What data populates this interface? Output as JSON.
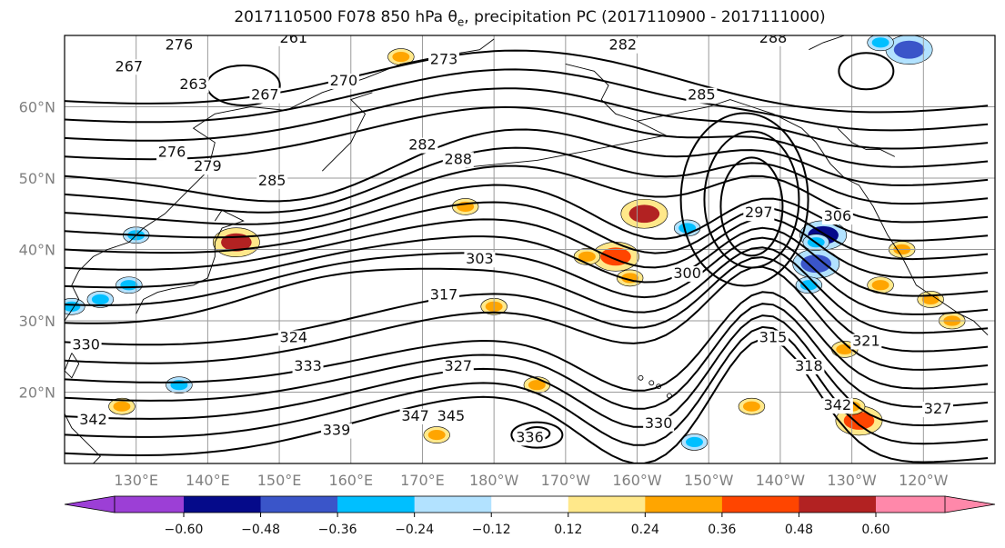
{
  "title": {
    "text": "2017110500 F078 850 hPa θ",
    "sub": "e",
    "suffix": ", precipitation PC (2017110900 - 2017111000)"
  },
  "map": {
    "lat_range": [
      10,
      70
    ],
    "lon_range": [
      120,
      250
    ],
    "lat_ticks": [
      {
        "lat": 60,
        "label": "60°N"
      },
      {
        "lat": 50,
        "label": "50°N"
      },
      {
        "lat": 40,
        "label": "40°N"
      },
      {
        "lat": 30,
        "label": "30°N"
      },
      {
        "lat": 20,
        "label": "20°N"
      }
    ],
    "lon_ticks": [
      {
        "lon": 130,
        "label": "130°E"
      },
      {
        "lon": 140,
        "label": "140°E"
      },
      {
        "lon": 150,
        "label": "150°E"
      },
      {
        "lon": 160,
        "label": "160°E"
      },
      {
        "lon": 170,
        "label": "170°E"
      },
      {
        "lon": 180,
        "label": "180°W"
      },
      {
        "lon": 190,
        "label": "170°W"
      },
      {
        "lon": 200,
        "label": "160°W"
      },
      {
        "lon": 210,
        "label": "150°W"
      },
      {
        "lon": 220,
        "label": "140°W"
      },
      {
        "lon": 230,
        "label": "130°W"
      },
      {
        "lon": 240,
        "label": "120°W"
      }
    ],
    "grid": true,
    "contour_labels": [
      {
        "text": "276",
        "lon": 136,
        "lat": 68
      },
      {
        "text": "261",
        "lon": 152,
        "lat": 69
      },
      {
        "text": "267",
        "lon": 129,
        "lat": 65
      },
      {
        "text": "263",
        "lon": 138,
        "lat": 62.5
      },
      {
        "text": "267",
        "lon": 148,
        "lat": 61
      },
      {
        "text": "270",
        "lon": 159,
        "lat": 63
      },
      {
        "text": "273",
        "lon": 173,
        "lat": 66
      },
      {
        "text": "282",
        "lon": 198,
        "lat": 68
      },
      {
        "text": "288",
        "lon": 219,
        "lat": 69
      },
      {
        "text": "285",
        "lon": 209,
        "lat": 61
      },
      {
        "text": "276",
        "lon": 135,
        "lat": 53
      },
      {
        "text": "279",
        "lon": 140,
        "lat": 51
      },
      {
        "text": "285",
        "lon": 149,
        "lat": 49
      },
      {
        "text": "282",
        "lon": 170,
        "lat": 54
      },
      {
        "text": "288",
        "lon": 175,
        "lat": 52
      },
      {
        "text": "297",
        "lon": 217,
        "lat": 44.5
      },
      {
        "text": "306",
        "lon": 228,
        "lat": 44
      },
      {
        "text": "303",
        "lon": 178,
        "lat": 38
      },
      {
        "text": "300",
        "lon": 207,
        "lat": 36
      },
      {
        "text": "317",
        "lon": 173,
        "lat": 33
      },
      {
        "text": "324",
        "lon": 152,
        "lat": 27
      },
      {
        "text": "333",
        "lon": 154,
        "lat": 23
      },
      {
        "text": "327",
        "lon": 175,
        "lat": 23
      },
      {
        "text": "315",
        "lon": 219,
        "lat": 27
      },
      {
        "text": "318",
        "lon": 224,
        "lat": 23
      },
      {
        "text": "321",
        "lon": 232,
        "lat": 26.5
      },
      {
        "text": "330",
        "lon": 123,
        "lat": 26
      },
      {
        "text": "342",
        "lon": 124,
        "lat": 15.5
      },
      {
        "text": "347",
        "lon": 169,
        "lat": 16
      },
      {
        "text": "339",
        "lon": 158,
        "lat": 14
      },
      {
        "text": "345",
        "lon": 174,
        "lat": 16
      },
      {
        "text": "336",
        "lon": 185,
        "lat": 13
      },
      {
        "text": "330",
        "lon": 203,
        "lat": 15
      },
      {
        "text": "342",
        "lon": 228,
        "lat": 17.5
      },
      {
        "text": "327",
        "lon": 242,
        "lat": 17
      }
    ]
  },
  "colorbar": {
    "colors": [
      "#9c3fd6",
      "#050a8a",
      "#3a55c9",
      "#00bfff",
      "#b2e2ff",
      "#ffffff",
      "#ffe88a",
      "#ffa500",
      "#ff4500",
      "#b22222",
      "#ff88aa"
    ],
    "extend": "both",
    "ticks": [
      "−0.60",
      "−0.48",
      "−0.36",
      "−0.24",
      "−0.12",
      "0.12",
      "0.24",
      "0.36",
      "0.48",
      "0.60"
    ]
  },
  "precip_blobs": [
    {
      "lon": 225,
      "lat": 38,
      "value": -0.4
    },
    {
      "lon": 226,
      "lat": 42,
      "value": -0.5
    },
    {
      "lon": 225,
      "lat": 41,
      "value": -0.3
    },
    {
      "lon": 224,
      "lat": 35,
      "value": -0.3
    },
    {
      "lon": 197,
      "lat": 39,
      "value": 0.4
    },
    {
      "lon": 193,
      "lat": 39,
      "value": 0.3
    },
    {
      "lon": 199,
      "lat": 36,
      "value": 0.3
    },
    {
      "lon": 201,
      "lat": 45,
      "value": 0.5
    },
    {
      "lon": 176,
      "lat": 46,
      "value": 0.3
    },
    {
      "lon": 144,
      "lat": 41,
      "value": 0.5
    },
    {
      "lon": 238,
      "lat": 68,
      "value": -0.4
    },
    {
      "lon": 234,
      "lat": 69,
      "value": -0.3
    },
    {
      "lon": 231,
      "lat": 16,
      "value": 0.4
    },
    {
      "lon": 230,
      "lat": 18,
      "value": 0.3
    },
    {
      "lon": 172,
      "lat": 14,
      "value": 0.3
    },
    {
      "lon": 125,
      "lat": 33,
      "value": -0.3
    },
    {
      "lon": 129,
      "lat": 35,
      "value": -0.3
    },
    {
      "lon": 207,
      "lat": 43,
      "value": -0.3
    },
    {
      "lon": 229,
      "lat": 26,
      "value": 0.3
    },
    {
      "lon": 186,
      "lat": 21,
      "value": 0.3
    },
    {
      "lon": 167,
      "lat": 67,
      "value": 0.3
    },
    {
      "lon": 234,
      "lat": 35,
      "value": 0.3
    },
    {
      "lon": 237,
      "lat": 40,
      "value": 0.3
    },
    {
      "lon": 180,
      "lat": 32,
      "value": 0.3
    },
    {
      "lon": 216,
      "lat": 18,
      "value": 0.3
    },
    {
      "lon": 208,
      "lat": 13,
      "value": -0.3
    },
    {
      "lon": 241,
      "lat": 33,
      "value": 0.25
    },
    {
      "lon": 244,
      "lat": 30,
      "value": 0.25
    },
    {
      "lon": 121,
      "lat": 32,
      "value": -0.3
    },
    {
      "lon": 136,
      "lat": 21,
      "value": -0.25
    },
    {
      "lon": 130,
      "lat": 42,
      "value": -0.25
    },
    {
      "lon": 128,
      "lat": 18,
      "value": 0.3
    }
  ]
}
